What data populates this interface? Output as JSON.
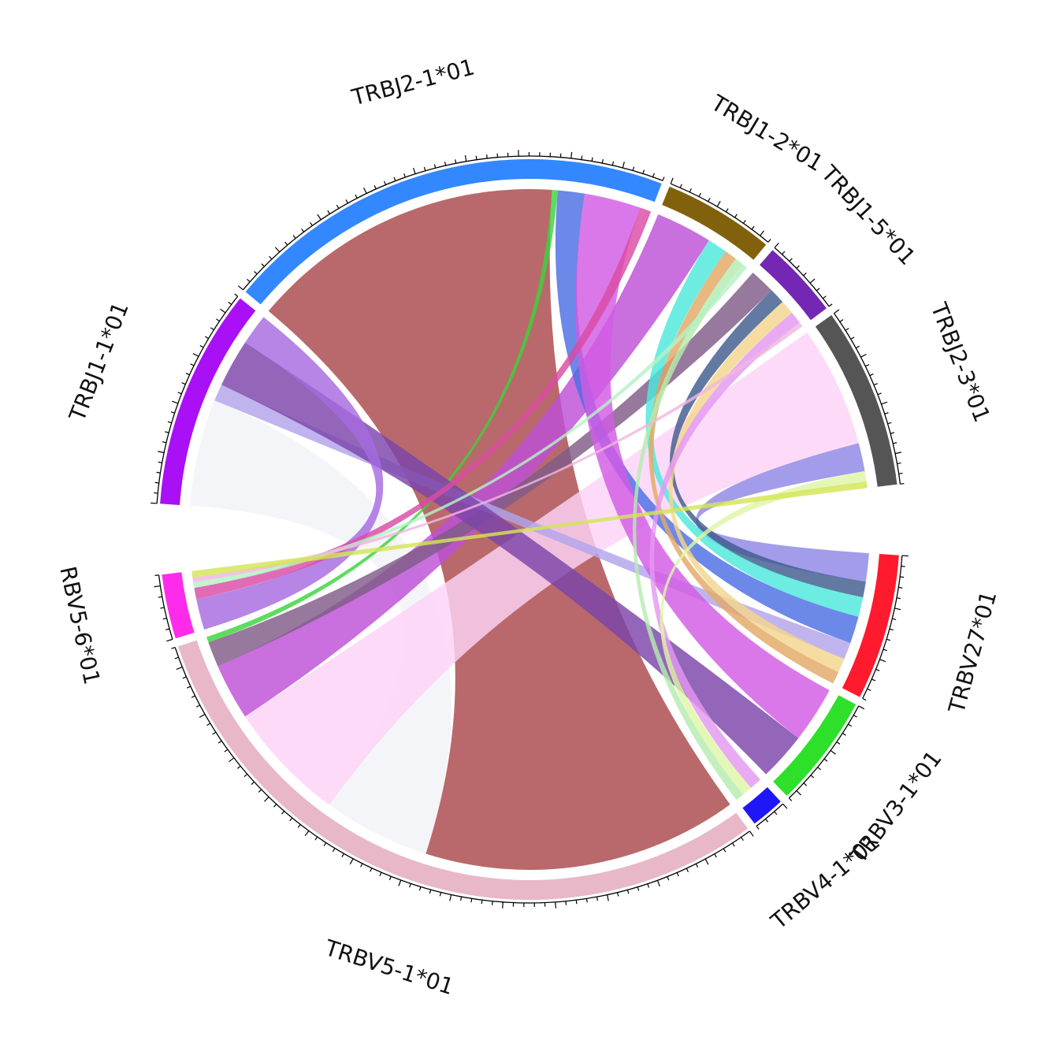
{
  "chart_data": {
    "type": "chord",
    "title": "",
    "segments": [
      {
        "id": "TRBV27",
        "label": "TRBV27*01",
        "color": "#ff1a2e"
      },
      {
        "id": "TRBV3",
        "label": "TRBV3-1*01",
        "color": "#2ee02a"
      },
      {
        "id": "TRBV4",
        "label": "TRBV4-1*01",
        "color": "#1f17f5"
      },
      {
        "id": "TRBV5_1",
        "label": "TRBV5-1*01",
        "color": "#e8b8c8"
      },
      {
        "id": "TRBV5_6",
        "label": "RBV5-6*01",
        "color": "#ff2bea"
      },
      {
        "id": "TRBJ1_1",
        "label": "TRBJ1-1*01",
        "color": "#a910f5"
      },
      {
        "id": "TRBJ2_1",
        "label": "TRBJ2-1*01",
        "color": "#3388ff"
      },
      {
        "id": "TRBJ1_2",
        "label": "TRBJ1-2*01",
        "color": "#82610c"
      },
      {
        "id": "TRBJ1_5",
        "label": "TRBJ1-5*01",
        "color": "#7427b4"
      },
      {
        "id": "TRBJ2_3",
        "label": "TRBJ2-3*01",
        "color": "#555555"
      }
    ],
    "links": [
      {
        "source": "TRBV5_1",
        "target": "TRBJ2_1",
        "value": 560,
        "color": "#a9484b"
      },
      {
        "source": "TRBV5_1",
        "target": "TRBJ1_1",
        "value": 190,
        "color": "#f1f3f6"
      },
      {
        "source": "TRBV5_1",
        "target": "TRBJ2_3",
        "value": 215,
        "color": "#fcd3f7"
      },
      {
        "source": "TRBV5_1",
        "target": "TRBJ1_2",
        "value": 100,
        "color": "#bd4fd7"
      },
      {
        "source": "TRBV5_1",
        "target": "TRBJ1_5",
        "value": 45,
        "color": "#7f5c87"
      },
      {
        "source": "TRBV5_1",
        "target": "TRBJ2_1",
        "value": 10,
        "color": "#3bd43b"
      },
      {
        "source": "TRBV27",
        "target": "TRBJ2_3",
        "value": 50,
        "color": "#8f86e6"
      },
      {
        "source": "TRBV27",
        "target": "TRBJ1_5",
        "value": 28,
        "color": "#3f5b8d"
      },
      {
        "source": "TRBV27",
        "target": "TRBJ1_2",
        "value": 35,
        "color": "#4de8dc"
      },
      {
        "source": "TRBV27",
        "target": "TRBJ2_1",
        "value": 48,
        "color": "#4c6ee3"
      },
      {
        "source": "TRBV27",
        "target": "TRBJ1_1",
        "value": 30,
        "color": "#b2a4ec"
      },
      {
        "source": "TRBV27",
        "target": "TRBJ1_5",
        "value": 25,
        "color": "#f3d68c"
      },
      {
        "source": "TRBV27",
        "target": "TRBJ1_2",
        "value": 22,
        "color": "#e3a865"
      },
      {
        "source": "TRBV3",
        "target": "TRBJ2_1",
        "value": 100,
        "color": "#d35ae4"
      },
      {
        "source": "TRBV3",
        "target": "TRBJ1_1",
        "value": 85,
        "color": "#7b44a9"
      },
      {
        "source": "TRBV4",
        "target": "TRBJ1_5",
        "value": 22,
        "color": "#e497f2"
      },
      {
        "source": "TRBV4",
        "target": "TRBJ2_3",
        "value": 18,
        "color": "#dff5a6"
      },
      {
        "source": "TRBV4",
        "target": "TRBJ1_2",
        "value": 15,
        "color": "#b4ecb0"
      },
      {
        "source": "TRBV5_6",
        "target": "TRBJ1_1",
        "value": 55,
        "color": "#a66ae0"
      },
      {
        "source": "TRBV5_6",
        "target": "TRBJ2_1",
        "value": 20,
        "color": "#db4aa3"
      },
      {
        "source": "TRBV5_6",
        "target": "TRBJ1_2",
        "value": 10,
        "color": "#b5f2c3"
      },
      {
        "source": "TRBV5_6",
        "target": "TRBJ1_5",
        "value": 8,
        "color": "#f0b6e0"
      },
      {
        "source": "TRBV5_6",
        "target": "TRBJ2_3",
        "value": 12,
        "color": "#d3e557"
      }
    ]
  }
}
